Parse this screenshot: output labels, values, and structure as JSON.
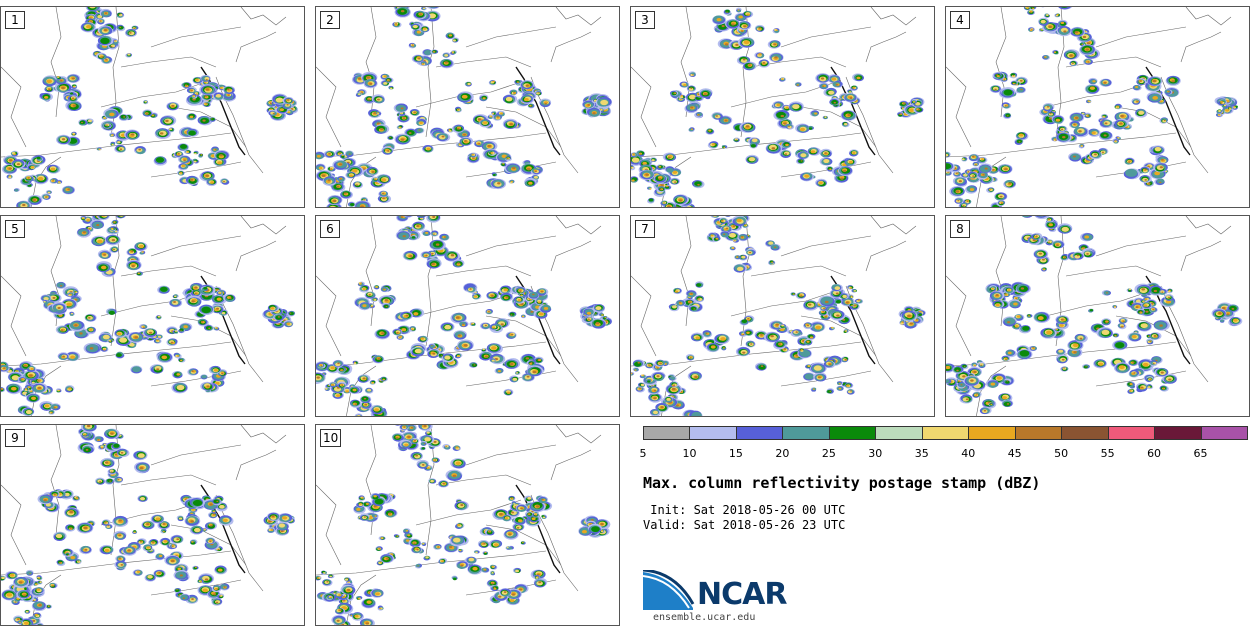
{
  "panels": [
    {
      "label": "1"
    },
    {
      "label": "2"
    },
    {
      "label": "3"
    },
    {
      "label": "4"
    },
    {
      "label": "5"
    },
    {
      "label": "6"
    },
    {
      "label": "7"
    },
    {
      "label": "8"
    },
    {
      "label": "9"
    },
    {
      "label": "10"
    }
  ],
  "colorbar": {
    "ticks": [
      "5",
      "10",
      "15",
      "20",
      "25",
      "30",
      "35",
      "40",
      "45",
      "50",
      "55",
      "60",
      "65"
    ],
    "colors": [
      "#a8a8a8",
      "#b4bdee",
      "#5760d9",
      "#4f9a9a",
      "#0a8a0a",
      "#bcdcbc",
      "#f0d870",
      "#e8a820",
      "#b8782a",
      "#8a5432",
      "#ee5a7a",
      "#6a1838",
      "#a852a8"
    ]
  },
  "title": "Max. column reflectivity postage stamp (dBZ)",
  "init": " Init: Sat 2018-05-26 00 UTC",
  "valid": "Valid: Sat 2018-05-26 23 UTC",
  "logo": {
    "text": "NCAR",
    "colors": [
      "#0b3a6b",
      "#1e7fc8"
    ]
  },
  "site": "ensemble.ucar.edu"
}
